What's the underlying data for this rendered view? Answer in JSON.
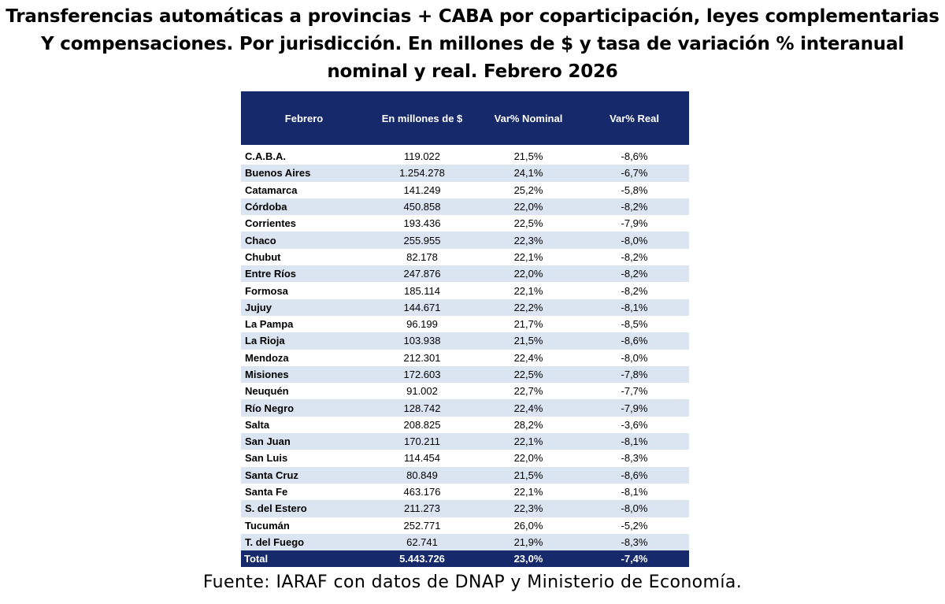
{
  "title_lines": [
    "Transferencias  automáticas  a provincias  + CABA por coparticipación,  leyes complementarias",
    "Y compensaciones.  Por jurisdicción. En millones de $ y tasa de variación % interanual",
    "nominal  y real.  Febrero 2026"
  ],
  "source": "Fuente: IARAF con datos de DNAP y Ministerio de Economía.",
  "colors": {
    "header_bg": "#16296b",
    "stripe": "#dbe5f1",
    "header_text": "#ffffff"
  },
  "chart_data": {
    "type": "table",
    "columns": [
      "Febrero",
      "En millones de $",
      "Var% Nominal",
      "Var% Real"
    ],
    "rows": [
      [
        "C.A.B.A.",
        "119.022",
        "21,5%",
        "-8,6%"
      ],
      [
        "Buenos Aires",
        "1.254.278",
        "24,1%",
        "-6,7%"
      ],
      [
        "Catamarca",
        "141.249",
        "25,2%",
        "-5,8%"
      ],
      [
        "Córdoba",
        "450.858",
        "22,0%",
        "-8,2%"
      ],
      [
        "Corrientes",
        "193.436",
        "22,5%",
        "-7,9%"
      ],
      [
        "Chaco",
        "255.955",
        "22,3%",
        "-8,0%"
      ],
      [
        "Chubut",
        "82.178",
        "22,1%",
        "-8,2%"
      ],
      [
        "Entre Ríos",
        "247.876",
        "22,0%",
        "-8,2%"
      ],
      [
        "Formosa",
        "185.114",
        "22,1%",
        "-8,2%"
      ],
      [
        "Jujuy",
        "144.671",
        "22,2%",
        "-8,1%"
      ],
      [
        "La Pampa",
        "96.199",
        "21,7%",
        "-8,5%"
      ],
      [
        "La Rioja",
        "103.938",
        "21,5%",
        "-8,6%"
      ],
      [
        "Mendoza",
        "212.301",
        "22,4%",
        "-8,0%"
      ],
      [
        "Misiones",
        "172.603",
        "22,5%",
        "-7,8%"
      ],
      [
        "Neuquén",
        "91.002",
        "22,7%",
        "-7,7%"
      ],
      [
        "Río Negro",
        "128.742",
        "22,4%",
        "-7,9%"
      ],
      [
        "Salta",
        "208.825",
        "28,2%",
        "-3,6%"
      ],
      [
        "San Juan",
        "170.211",
        "22,1%",
        "-8,1%"
      ],
      [
        "San Luis",
        "114.454",
        "22,0%",
        "-8,3%"
      ],
      [
        "Santa Cruz",
        "80.849",
        "21,5%",
        "-8,6%"
      ],
      [
        "Santa Fe",
        "463.176",
        "22,1%",
        "-8,1%"
      ],
      [
        "S. del Estero",
        "211.273",
        "22,3%",
        "-8,0%"
      ],
      [
        "Tucumán",
        "252.771",
        "26,0%",
        "-5,2%"
      ],
      [
        "T. del Fuego",
        "62.741",
        "21,9%",
        "-8,3%"
      ]
    ],
    "total": [
      "Total",
      "5.443.726",
      "23,0%",
      "-7,4%"
    ]
  }
}
